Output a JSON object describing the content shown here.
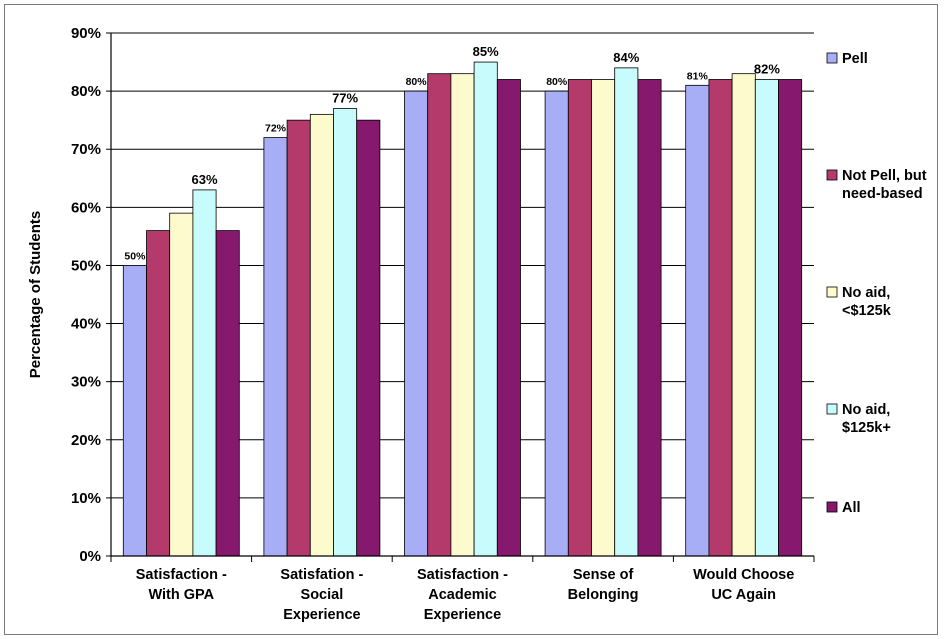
{
  "chart_data": {
    "type": "bar",
    "title": "",
    "xlabel": "",
    "ylabel": "Percentage of Students",
    "ylim": [
      0,
      90
    ],
    "yticks": [
      "0%",
      "10%",
      "20%",
      "30%",
      "40%",
      "50%",
      "60%",
      "70%",
      "80%",
      "90%"
    ],
    "grid": true,
    "legend_position": "right",
    "categories": [
      [
        "Satisfaction -",
        "With GPA"
      ],
      [
        "Satisfation -",
        "Social",
        "Experience"
      ],
      [
        "Satisfaction -",
        "Academic",
        "Experience"
      ],
      [
        "Sense of",
        "Belonging"
      ],
      [
        "Would Choose",
        "UC Again"
      ]
    ],
    "series": [
      {
        "name": "Pell",
        "legend_lines": [
          "Pell"
        ],
        "color": "#a8aef5",
        "values": [
          50,
          72,
          80,
          80,
          81
        ]
      },
      {
        "name": "Not Pell, but need-based",
        "legend_lines": [
          "Not Pell, but",
          "need-based"
        ],
        "color": "#b33a6a",
        "values": [
          56,
          75,
          83,
          82,
          82
        ]
      },
      {
        "name": "No aid, <$125k",
        "legend_lines": [
          "No aid,",
          "<$125k"
        ],
        "color": "#fdfbcd",
        "values": [
          59,
          76,
          83,
          82,
          83
        ]
      },
      {
        "name": "No aid, $125k+",
        "legend_lines": [
          "No aid,",
          "$125k+"
        ],
        "color": "#c7fbfc",
        "values": [
          63,
          77,
          85,
          84,
          82
        ]
      },
      {
        "name": "All",
        "legend_lines": [
          "All"
        ],
        "color": "#86196e",
        "values": [
          56,
          75,
          82,
          82,
          82
        ]
      }
    ],
    "data_labels": [
      {
        "category": 0,
        "series": 0,
        "text": "50%",
        "size": "small"
      },
      {
        "category": 0,
        "series": 3,
        "text": "63%",
        "size": "big"
      },
      {
        "category": 1,
        "series": 0,
        "text": "72%",
        "size": "small"
      },
      {
        "category": 1,
        "series": 3,
        "text": "77%",
        "size": "big"
      },
      {
        "category": 2,
        "series": 0,
        "text": "80%",
        "size": "small"
      },
      {
        "category": 2,
        "series": 3,
        "text": "85%",
        "size": "big"
      },
      {
        "category": 3,
        "series": 0,
        "text": "80%",
        "size": "small"
      },
      {
        "category": 3,
        "series": 3,
        "text": "84%",
        "size": "big"
      },
      {
        "category": 4,
        "series": 0,
        "text": "81%",
        "size": "small"
      },
      {
        "category": 4,
        "series": 3,
        "text": "82%",
        "size": "big"
      }
    ]
  }
}
